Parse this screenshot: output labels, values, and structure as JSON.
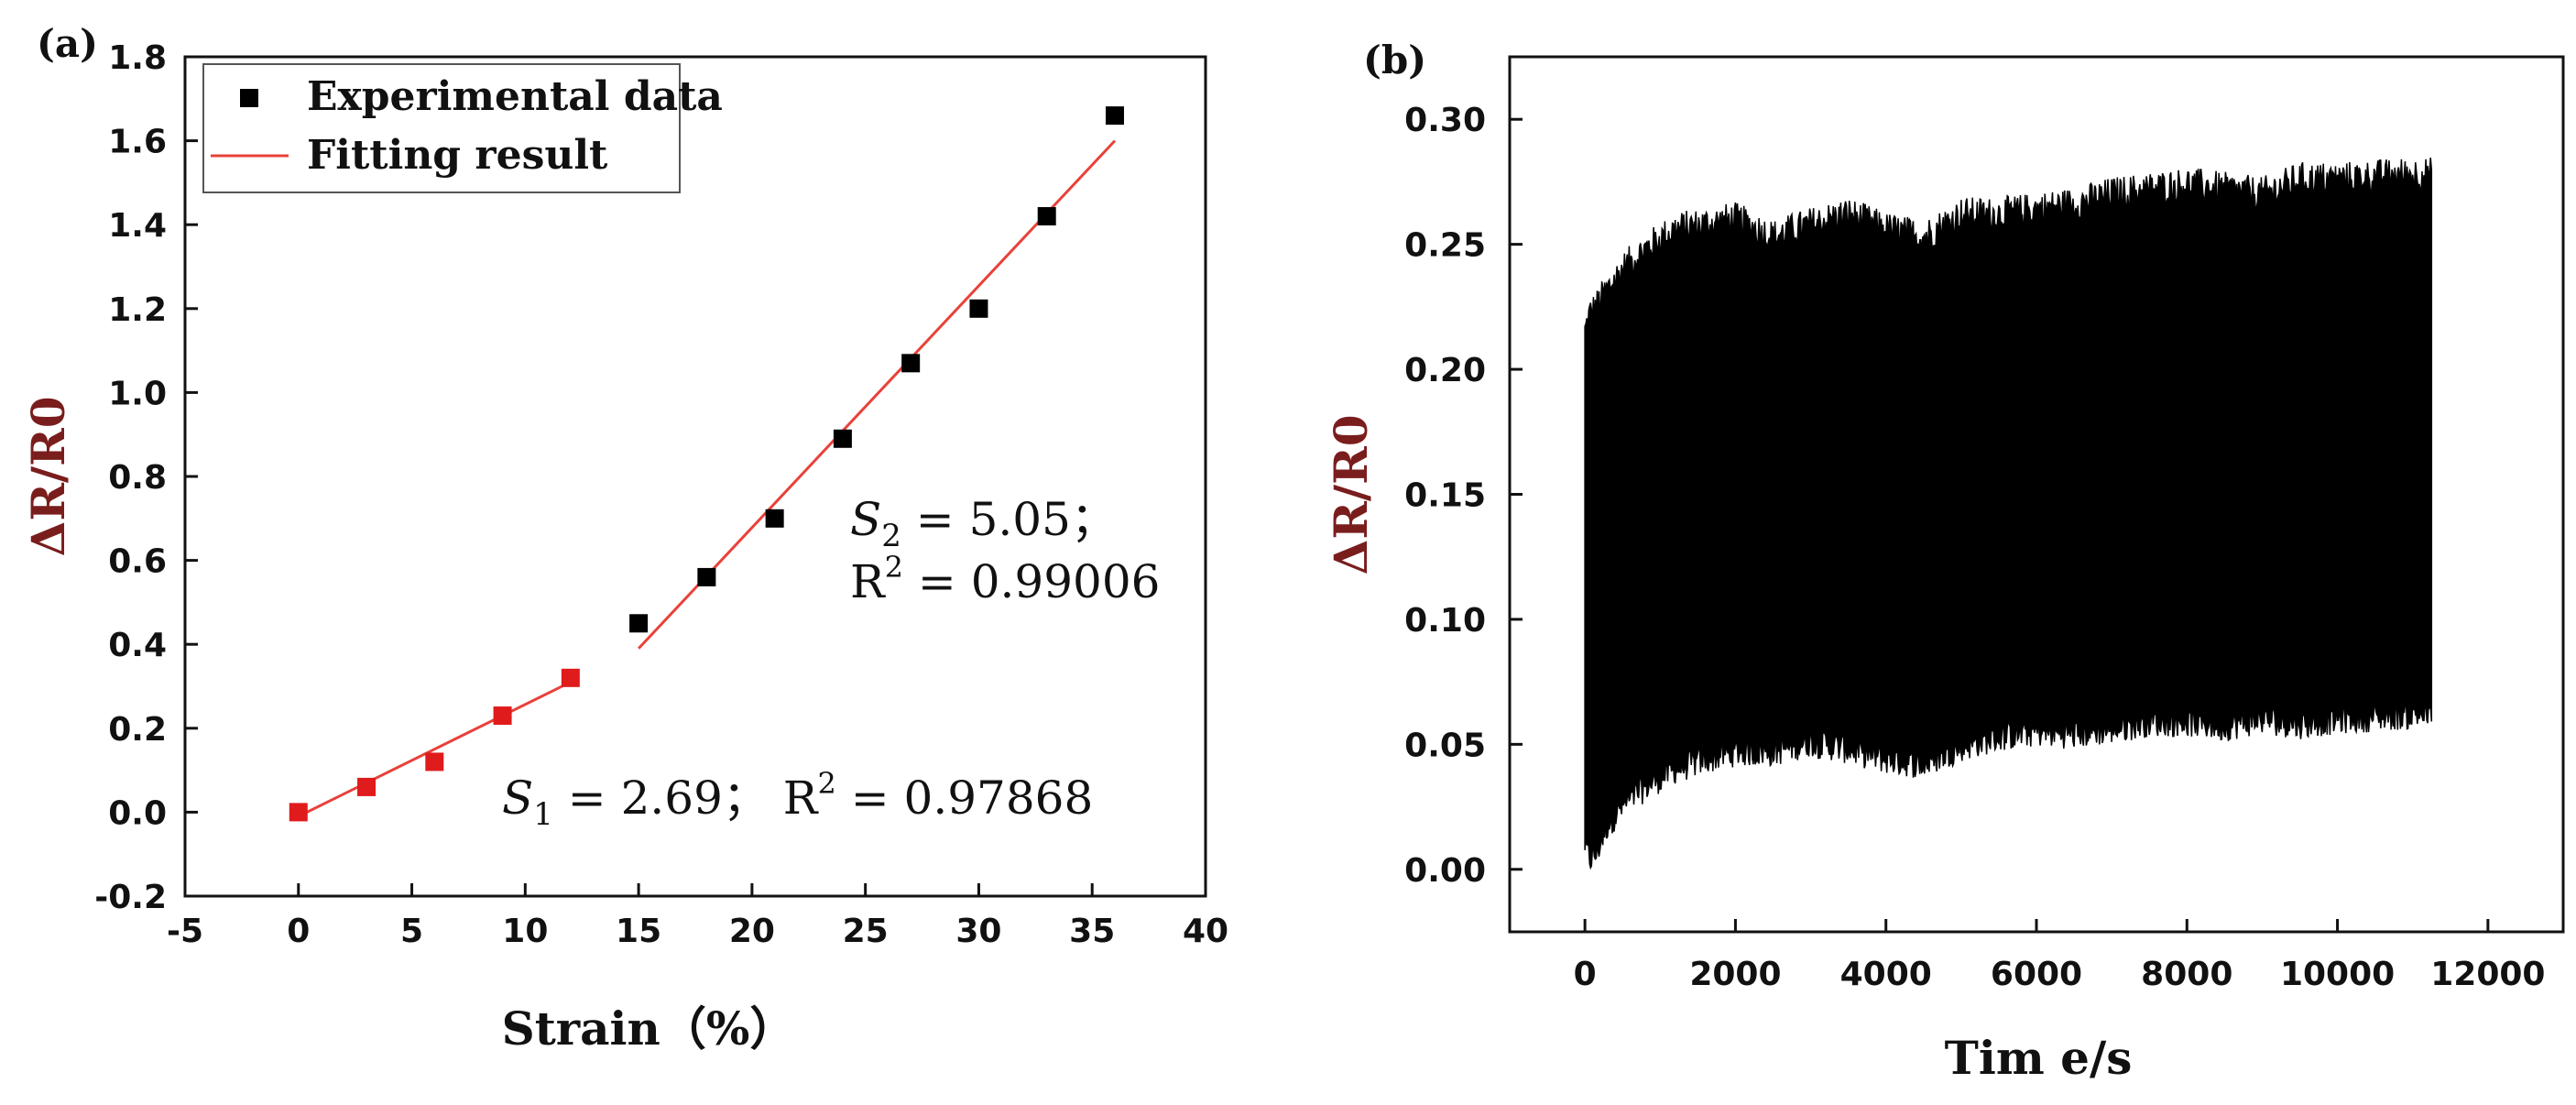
{
  "chart_data": [
    {
      "panel": "(a)",
      "type": "scatter",
      "xlabel": "Strain（%）",
      "ylabel": "ΔR/R0",
      "xlim": [
        -5,
        40
      ],
      "ylim": [
        -0.2,
        1.8
      ],
      "xticks": [
        "-5",
        "0",
        "5",
        "10",
        "15",
        "20",
        "25",
        "30",
        "35",
        "40"
      ],
      "yticks": [
        "-0.2",
        "0.0",
        "0.2",
        "0.4",
        "0.6",
        "0.8",
        "1.0",
        "1.2",
        "1.4",
        "1.6",
        "1.8"
      ],
      "legend_position": "top-left",
      "legend": [
        {
          "label": "Experimental data",
          "marker": "square",
          "color": "#000000"
        },
        {
          "label": "Fitting result",
          "marker": "line",
          "color": "#e8413a"
        }
      ],
      "series": [
        {
          "name": "Experimental data",
          "color": "#e01b1b",
          "x": [
            0,
            3,
            6,
            9,
            12
          ],
          "y": [
            0.0,
            0.06,
            0.12,
            0.23,
            0.32
          ]
        },
        {
          "name": "Experimental data",
          "color": "#000000",
          "x": [
            15,
            18,
            21,
            24,
            27,
            30,
            33,
            36
          ],
          "y": [
            0.45,
            0.56,
            0.7,
            0.89,
            1.07,
            1.2,
            1.42,
            1.66
          ]
        }
      ],
      "fits": [
        {
          "name": "Fitting result",
          "color": "#e8413a",
          "x": [
            0,
            12
          ],
          "y": [
            -0.01,
            0.31
          ]
        },
        {
          "name": "Fitting result",
          "color": "#e8413a",
          "x": [
            15,
            36
          ],
          "y": [
            0.39,
            1.6
          ]
        }
      ],
      "annotations": [
        {
          "sym": "S",
          "sub": "1",
          "text": " = 2.69；  R",
          "sup": "2",
          "tail": " = 0.97868"
        },
        {
          "sym": "S",
          "sub": "2",
          "text": " = 5.05；"
        },
        {
          "text": "R",
          "sup": "2",
          "tail": " = 0.99006"
        }
      ]
    },
    {
      "panel": "(b)",
      "type": "area",
      "xlabel": "Tim e/s",
      "ylabel": "ΔR/R0",
      "xlim": [
        -1000,
        13000
      ],
      "ylim": [
        -0.025,
        0.325
      ],
      "xticks": [
        "0",
        "2000",
        "4000",
        "6000",
        "8000",
        "10000",
        "12000"
      ],
      "yticks": [
        "0.00",
        "0.05",
        "0.10",
        "0.15",
        "0.20",
        "0.25",
        "0.30"
      ],
      "color": "#000000",
      "envelope": {
        "x": [
          0,
          60,
          150,
          300,
          500,
          800,
          1200,
          1600,
          2000,
          2500,
          3000,
          3500,
          4000,
          4500,
          5000,
          5500,
          6000,
          6500,
          7000,
          7500,
          8000,
          8500,
          9000,
          9500,
          10000,
          10500,
          11000,
          11250
        ],
        "upper": [
          0.215,
          0.222,
          0.225,
          0.232,
          0.24,
          0.248,
          0.256,
          0.258,
          0.26,
          0.253,
          0.258,
          0.262,
          0.256,
          0.253,
          0.262,
          0.262,
          0.264,
          0.266,
          0.27,
          0.272,
          0.274,
          0.272,
          0.27,
          0.276,
          0.276,
          0.277,
          0.278,
          0.278
        ],
        "lower": [
          0.01,
          0.004,
          0.006,
          0.018,
          0.025,
          0.033,
          0.04,
          0.044,
          0.047,
          0.047,
          0.051,
          0.048,
          0.044,
          0.042,
          0.049,
          0.053,
          0.055,
          0.054,
          0.056,
          0.059,
          0.059,
          0.057,
          0.06,
          0.058,
          0.06,
          0.061,
          0.062,
          0.062
        ]
      }
    }
  ]
}
